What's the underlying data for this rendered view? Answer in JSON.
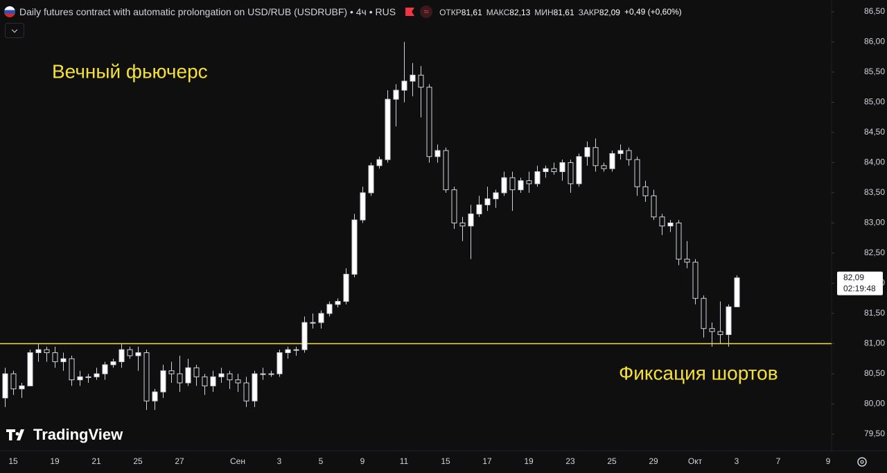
{
  "chart_data": {
    "type": "candlestick",
    "title": "Daily futures contract with automatic prolongation on USD/RUB (USDRUBF) • 4ч • RUS",
    "ohlc_legend": [
      {
        "label": "ОТКР",
        "value": "81,61"
      },
      {
        "label": "МАКС",
        "value": "82,13"
      },
      {
        "label": "МИН",
        "value": "81,61"
      },
      {
        "label": "ЗАКР",
        "value": "82,09"
      }
    ],
    "change": "+0,49 (+0,60%)",
    "annotations": [
      "Вечный фьючерс",
      "Фиксация шортов"
    ],
    "logo": "TradingView",
    "categories": [
      null,
      "15",
      null,
      null,
      null,
      null,
      "19",
      null,
      null,
      null,
      null,
      "21",
      null,
      null,
      null,
      null,
      "25",
      null,
      null,
      null,
      null,
      "27",
      null,
      null,
      null,
      null,
      null,
      null,
      "Сен",
      null,
      null,
      null,
      null,
      "3",
      null,
      null,
      null,
      null,
      "5",
      null,
      null,
      null,
      null,
      "9",
      null,
      null,
      null,
      null,
      "11",
      null,
      null,
      null,
      null,
      "15",
      null,
      null,
      null,
      null,
      "17",
      null,
      null,
      null,
      null,
      "19",
      null,
      null,
      null,
      null,
      "23",
      null,
      null,
      null,
      null,
      "25",
      null,
      null,
      null,
      null,
      "29",
      null,
      null,
      null,
      null,
      "Окт",
      null,
      null,
      null,
      null,
      "3",
      null,
      null,
      null,
      null,
      "7",
      null,
      null,
      null,
      null,
      null,
      "9"
    ],
    "open": [
      80.1,
      80.5,
      80.25,
      80.3,
      80.85,
      80.9,
      80.85,
      80.7,
      80.75,
      80.4,
      80.45,
      80.45,
      80.5,
      80.65,
      80.7,
      80.9,
      80.8,
      80.85,
      80.05,
      80.2,
      80.55,
      80.5,
      80.35,
      80.6,
      80.45,
      80.3,
      80.45,
      80.5,
      80.4,
      80.35,
      80.05,
      80.5,
      80.5,
      80.5,
      80.85,
      80.9,
      80.9,
      81.35,
      81.35,
      81.5,
      81.65,
      81.7,
      82.15,
      83.05,
      83.5,
      83.95,
      84.05,
      85.05,
      85.2,
      85.35,
      85.45,
      85.25,
      84.1,
      84.2,
      83.55,
      83.0,
      82.95,
      83.15,
      83.3,
      83.4,
      83.5,
      83.75,
      83.55,
      83.7,
      83.65,
      83.85,
      83.9,
      83.85,
      84.0,
      83.65,
      84.1,
      84.25,
      83.95,
      83.9,
      84.15,
      84.2,
      84.05,
      83.6,
      83.45,
      83.1,
      82.95,
      83.0,
      82.4,
      82.35,
      81.75,
      81.25,
      81.2,
      81.15,
      81.61,
      null,
      null,
      null,
      null,
      null,
      null,
      null,
      null,
      null,
      null,
      null
    ],
    "high": [
      80.6,
      80.55,
      80.35,
      80.9,
      81.0,
      80.95,
      80.95,
      80.85,
      80.8,
      80.55,
      80.5,
      80.6,
      80.7,
      80.75,
      81.0,
      80.95,
      80.95,
      80.9,
      80.25,
      80.65,
      80.7,
      80.8,
      80.75,
      80.65,
      80.5,
      80.55,
      80.6,
      80.55,
      80.5,
      80.45,
      80.55,
      80.6,
      80.55,
      80.9,
      80.95,
      80.95,
      81.45,
      81.5,
      81.55,
      81.7,
      81.75,
      82.25,
      83.15,
      83.6,
      84.0,
      84.1,
      85.2,
      85.3,
      86.0,
      85.65,
      85.6,
      85.3,
      84.3,
      84.25,
      83.6,
      83.1,
      83.3,
      83.45,
      83.6,
      83.55,
      83.85,
      83.85,
      83.75,
      83.85,
      83.95,
      83.95,
      84.0,
      84.05,
      84.05,
      84.15,
      84.35,
      84.4,
      84.0,
      84.2,
      84.3,
      84.25,
      84.1,
      83.7,
      83.55,
      83.15,
      83.05,
      83.05,
      82.7,
      82.4,
      81.8,
      81.35,
      81.7,
      81.65,
      82.13,
      null,
      null,
      null,
      null,
      null,
      null,
      null,
      null,
      null,
      null,
      null
    ],
    "low": [
      79.95,
      80.15,
      80.1,
      80.3,
      80.7,
      80.7,
      80.6,
      80.55,
      80.3,
      80.3,
      80.35,
      80.4,
      80.4,
      80.6,
      80.6,
      80.75,
      80.55,
      79.9,
      79.9,
      80.1,
      80.35,
      80.2,
      80.3,
      80.3,
      80.15,
      80.2,
      80.35,
      80.25,
      80.2,
      79.95,
      79.95,
      80.4,
      80.45,
      80.45,
      80.75,
      80.8,
      80.85,
      81.25,
      81.25,
      81.45,
      81.6,
      81.65,
      82.1,
      83.0,
      83.45,
      83.9,
      84.0,
      84.6,
      85.0,
      85.1,
      84.75,
      84.0,
      84.0,
      83.5,
      82.9,
      82.7,
      82.4,
      83.1,
      83.2,
      83.25,
      83.45,
      83.2,
      83.5,
      83.5,
      83.6,
      83.75,
      83.8,
      83.7,
      83.5,
      83.6,
      83.95,
      83.85,
      83.85,
      83.85,
      84.05,
      83.95,
      83.45,
      83.35,
      83.05,
      82.8,
      82.85,
      82.3,
      82.25,
      81.65,
      81.1,
      80.95,
      81.0,
      80.95,
      81.61,
      null,
      null,
      null,
      null,
      null,
      null,
      null,
      null,
      null,
      null,
      null
    ],
    "close": [
      80.5,
      80.25,
      80.3,
      80.85,
      80.9,
      80.85,
      80.7,
      80.75,
      80.4,
      80.45,
      80.45,
      80.5,
      80.65,
      80.7,
      80.9,
      80.8,
      80.85,
      80.05,
      80.2,
      80.55,
      80.5,
      80.35,
      80.6,
      80.45,
      80.3,
      80.45,
      80.5,
      80.4,
      80.35,
      80.05,
      80.5,
      80.5,
      80.5,
      80.85,
      80.9,
      80.9,
      81.35,
      81.35,
      81.5,
      81.65,
      81.7,
      82.15,
      83.05,
      83.5,
      83.95,
      84.05,
      85.05,
      85.2,
      85.35,
      85.45,
      85.25,
      84.1,
      84.2,
      83.55,
      83.0,
      82.95,
      83.15,
      83.3,
      83.4,
      83.5,
      83.75,
      83.55,
      83.7,
      83.65,
      83.85,
      83.9,
      83.85,
      84.0,
      83.65,
      84.1,
      84.25,
      83.95,
      83.9,
      84.15,
      84.2,
      84.05,
      83.6,
      83.45,
      83.1,
      82.95,
      83.0,
      82.4,
      82.35,
      81.75,
      81.25,
      81.2,
      81.15,
      81.61,
      82.09,
      null,
      null,
      null,
      null,
      null,
      null,
      null,
      null,
      null,
      null,
      null
    ],
    "colors": {
      "up": "#ffffff",
      "down": "#0f0f0f",
      "wick": "#d1d4dc",
      "annotation": "#f5e03a"
    },
    "hline": {
      "value": 81,
      "color": "#f2e23c"
    },
    "last_price": {
      "value": 82.09,
      "label": "82,09"
    },
    "countdown": "02:19:48",
    "ylim": [
      79.224,
      86.695
    ],
    "yticks": [
      {
        "value": 79.5,
        "label": "79,50"
      },
      {
        "value": 80,
        "label": "80,00"
      },
      {
        "value": 80.5,
        "label": "80,50"
      },
      {
        "value": 81,
        "label": "81,00"
      },
      {
        "value": 81.5,
        "label": "81,50"
      },
      {
        "value": 82,
        "label": "82,00"
      },
      {
        "value": 82.5,
        "label": "82,50"
      },
      {
        "value": 83,
        "label": "83,00"
      },
      {
        "value": 83.5,
        "label": "83,50"
      },
      {
        "value": 84,
        "label": "84,00"
      },
      {
        "value": 84.5,
        "label": "84,50"
      },
      {
        "value": 85,
        "label": "85,00"
      },
      {
        "value": 85.5,
        "label": "85,50"
      },
      {
        "value": 86,
        "label": "86,00"
      },
      {
        "value": 86.5,
        "label": "86,50"
      }
    ]
  }
}
